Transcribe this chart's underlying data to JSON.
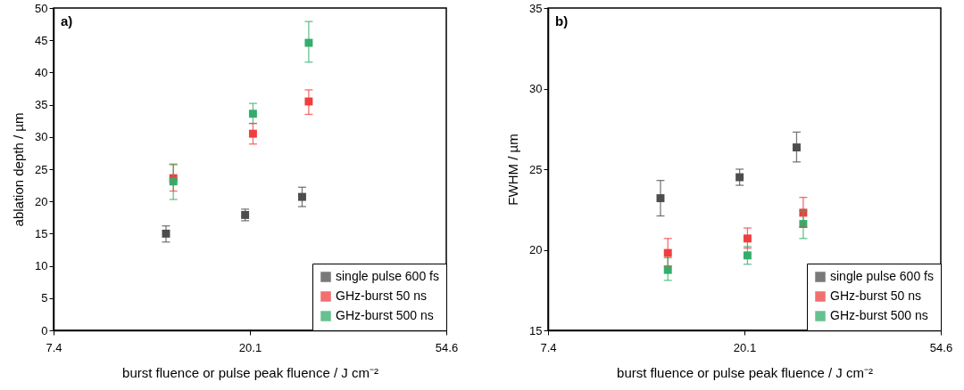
{
  "chart_data": [
    {
      "type": "scatter",
      "xlabel": "burst fluence or pulse peak fluence / J cm⁻²",
      "ylabel": "ablation depth / µm",
      "annotations": [
        "a)"
      ],
      "log": "x",
      "xlim": [
        7.389,
        54.598
      ],
      "xticks": [
        {
          "value": 7.389,
          "label": "7.4"
        },
        {
          "value": 20.086,
          "label": "20.1"
        },
        {
          "value": 54.598,
          "label": "54.6"
        }
      ],
      "ylim": [
        0,
        50
      ],
      "yticks": [
        0,
        5,
        10,
        15,
        20,
        25,
        30,
        35,
        40,
        45,
        50
      ],
      "grid": false,
      "legend": "bottom right",
      "marker": "square",
      "series": [
        {
          "name": "single pulse 600 fs",
          "color": "#4d4d4d",
          "x": [
            13.1,
            19.6,
            26.2
          ],
          "values": [
            15.0,
            17.9,
            20.7
          ],
          "errors": [
            [
              13.7,
              16.2
            ],
            [
              17.0,
              18.8
            ],
            [
              19.2,
              22.2
            ]
          ]
        },
        {
          "name": "GHz-burst 50 ns",
          "color": "#ef3f3f",
          "x": [
            13.6,
            20.4,
            27.1
          ],
          "values": [
            23.6,
            30.5,
            35.5
          ],
          "errors": [
            [
              21.6,
              25.7
            ],
            [
              28.9,
              32.1
            ],
            [
              33.5,
              37.3
            ]
          ]
        },
        {
          "name": "GHz-burst 500 ns",
          "color": "#34ad6c",
          "x": [
            13.6,
            20.4,
            27.1
          ],
          "values": [
            23.1,
            33.6,
            44.6
          ],
          "errors": [
            [
              20.3,
              25.8
            ],
            [
              32.1,
              35.2
            ],
            [
              41.6,
              47.9
            ]
          ]
        }
      ]
    },
    {
      "type": "scatter",
      "xlabel": "burst fluence or pulse peak fluence / J cm⁻²",
      "ylabel": "FWHM / µm",
      "annotations": [
        "b)"
      ],
      "log": "x",
      "xlim": [
        7.389,
        54.598
      ],
      "xticks": [
        {
          "value": 7.389,
          "label": "7.4"
        },
        {
          "value": 20.086,
          "label": "20.1"
        },
        {
          "value": 54.598,
          "label": "54.6"
        }
      ],
      "ylim": [
        15,
        35
      ],
      "yticks": [
        15,
        20,
        25,
        30,
        35
      ],
      "grid": false,
      "legend": "bottom right",
      "marker": "square",
      "series": [
        {
          "name": "single pulse 600 fs",
          "color": "#4d4d4d",
          "x": [
            13.1,
            19.6,
            26.2
          ],
          "values": [
            23.2,
            24.5,
            26.35
          ],
          "errors": [
            [
              22.1,
              24.3
            ],
            [
              24.0,
              25.0
            ],
            [
              25.45,
              27.3
            ]
          ]
        },
        {
          "name": "GHz-burst 50 ns",
          "color": "#ef3f3f",
          "x": [
            13.6,
            20.4,
            27.1
          ],
          "values": [
            19.8,
            20.7,
            22.3
          ],
          "errors": [
            [
              19.0,
              20.7
            ],
            [
              20.1,
              21.35
            ],
            [
              21.4,
              23.25
            ]
          ]
        },
        {
          "name": "GHz-burst 500 ns",
          "color": "#34ad6c",
          "x": [
            13.6,
            20.4,
            27.1
          ],
          "values": [
            18.75,
            19.65,
            21.6
          ],
          "errors": [
            [
              18.1,
              19.5
            ],
            [
              19.1,
              20.2
            ],
            [
              20.7,
              22.4
            ]
          ]
        }
      ]
    }
  ]
}
